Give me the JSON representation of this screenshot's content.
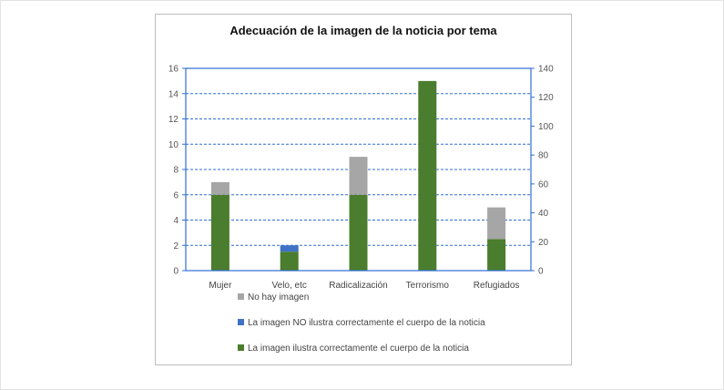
{
  "chart_data": {
    "type": "bar",
    "stacked": true,
    "title": "Adecuación de la imagen de la noticia por tema",
    "categories": [
      "Mujer",
      "Velo, etc",
      "Radicalización",
      "Terrorismo",
      "Refugiados"
    ],
    "series": [
      {
        "name": "La imagen ilustra correctamente el cuerpo de la noticia",
        "color": "#4a7d2d",
        "values": [
          6,
          1.5,
          6,
          15,
          2.5
        ]
      },
      {
        "name": "La imagen NO ilustra correctamente el cuerpo de la noticia",
        "color": "#3f72c4",
        "values": [
          0,
          0.5,
          0,
          0,
          0
        ]
      },
      {
        "name": "No hay imagen",
        "color": "#a6a6a6",
        "values": [
          1,
          0,
          3,
          0,
          2.5
        ]
      }
    ],
    "y_left": {
      "min": 0,
      "max": 16,
      "ticks": [
        0,
        2,
        4,
        6,
        8,
        10,
        12,
        14,
        16
      ]
    },
    "y_right": {
      "min": 0,
      "max": 140,
      "ticks": [
        0,
        20,
        40,
        60,
        80,
        100,
        120,
        140
      ]
    },
    "grid": "dashed-horizontal",
    "legend_position": "bottom"
  }
}
